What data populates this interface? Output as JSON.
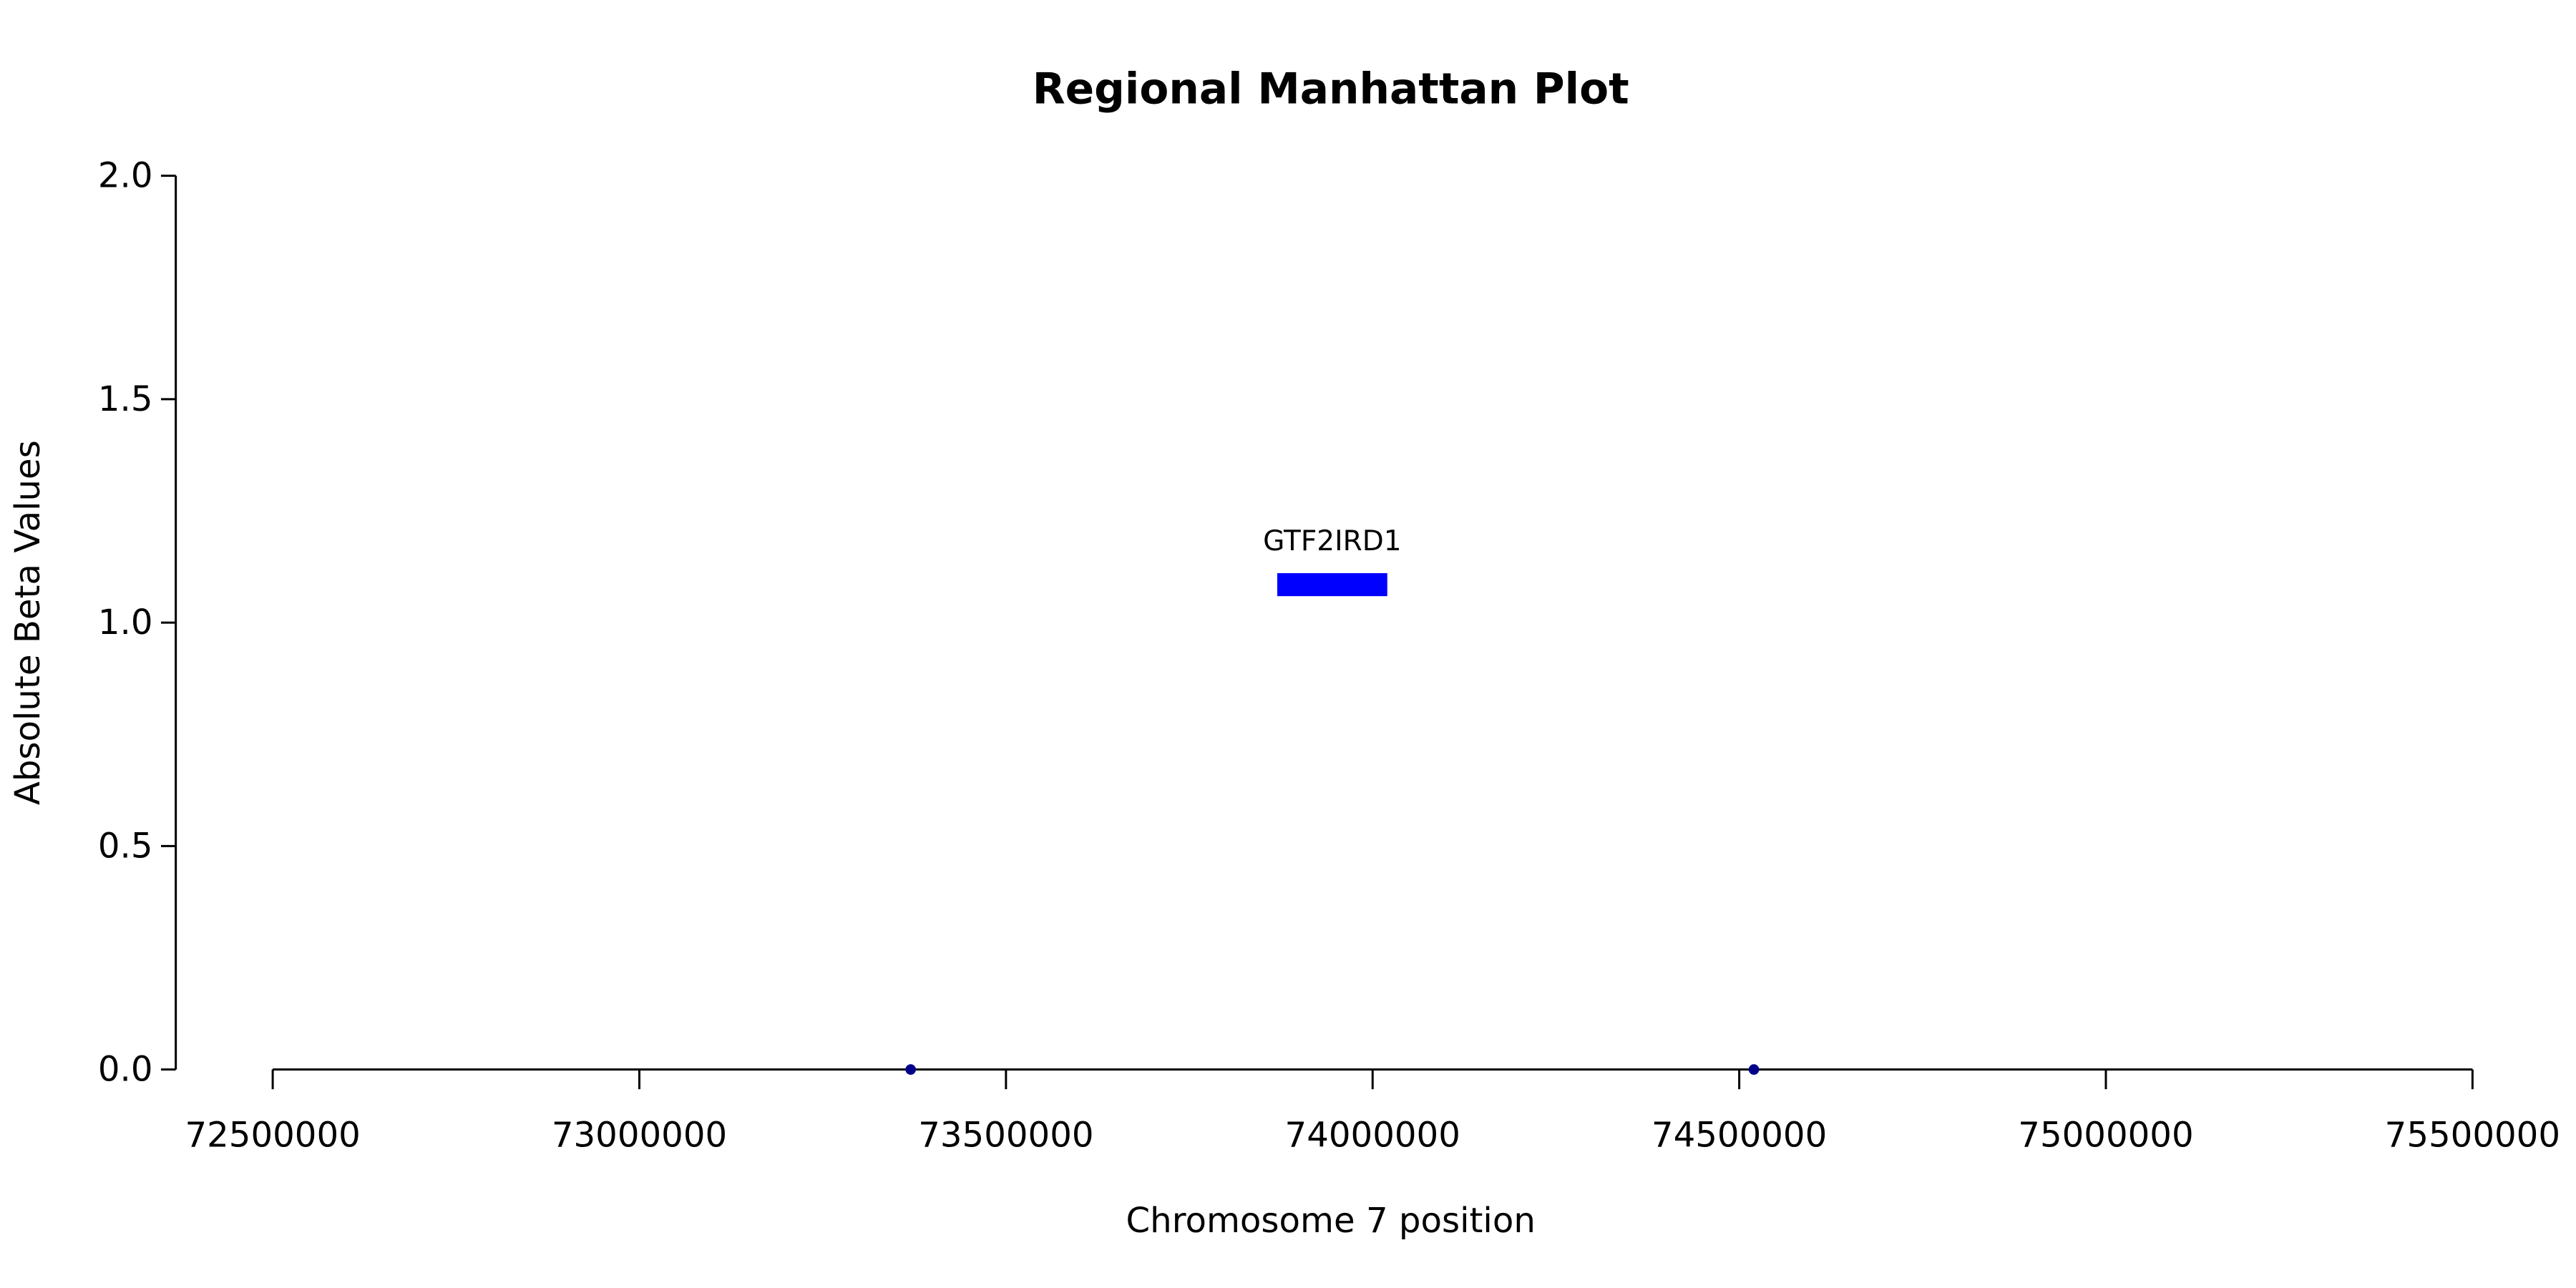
{
  "chart_data": {
    "type": "scatter",
    "title": "Regional Manhattan Plot",
    "xlabel": "Chromosome 7 position",
    "ylabel": "Absolute Beta Values",
    "x": [
      73370000,
      74520000
    ],
    "values": [
      0,
      0
    ],
    "color": "#00008b",
    "genes": [
      {
        "name": "GTF2IRD1",
        "start": 73870000,
        "end": 74020000,
        "y": 1.085,
        "color": "#0000ff"
      }
    ],
    "xlim": [
      72500000,
      75500000
    ],
    "xticks": [
      72500000,
      73000000,
      73500000,
      74000000,
      74500000,
      75000000,
      75500000
    ],
    "ylim": [
      0,
      2
    ],
    "yticks": [
      {
        "value": 0,
        "label": "0.0"
      },
      {
        "value": 0.5,
        "label": "0.5"
      },
      {
        "value": 1,
        "label": "1.0"
      },
      {
        "value": 1.5,
        "label": "1.5"
      },
      {
        "value": 2,
        "label": "2.0"
      }
    ],
    "grid": false
  }
}
